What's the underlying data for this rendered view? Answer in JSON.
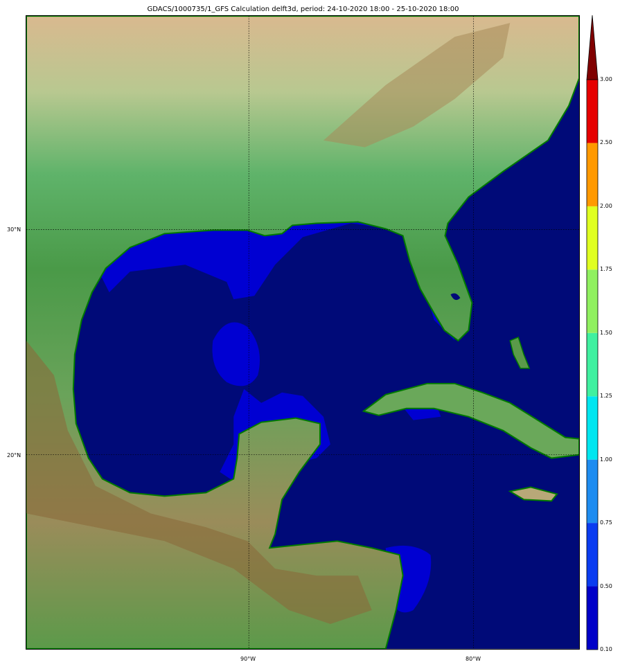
{
  "title": "GDACS/1000735/1_GFS Calculation delft3d, period: 24-10-2020 18:00 - 25-10-2020 18:00",
  "map": {
    "lon_range": [
      -100,
      -75.3
    ],
    "lat_range": [
      11.4,
      39.5
    ],
    "lon_ticks": [
      {
        "value": -90,
        "label": "90°W"
      },
      {
        "value": -80,
        "label": "80°W"
      }
    ],
    "lat_ticks": [
      {
        "value": 30,
        "label": "30°N"
      },
      {
        "value": 20,
        "label": "20°N"
      }
    ],
    "gridlines": true,
    "colors": {
      "ocean": "#000a78",
      "surge_low": "#0000d2",
      "coast": "#007a00"
    }
  },
  "colorbar": {
    "labels": [
      "0.10",
      "0.50",
      "0.75",
      "1.00",
      "1.25",
      "1.50",
      "1.75",
      "2.00",
      "2.50",
      "3.00"
    ],
    "colors": [
      "#0000c8",
      "#0a3cf0",
      "#1e8cf0",
      "#00e6f0",
      "#40f0a0",
      "#90f060",
      "#e0ff20",
      "#ff9900",
      "#e60000"
    ],
    "over_color": "#800000",
    "extend": "max"
  }
}
